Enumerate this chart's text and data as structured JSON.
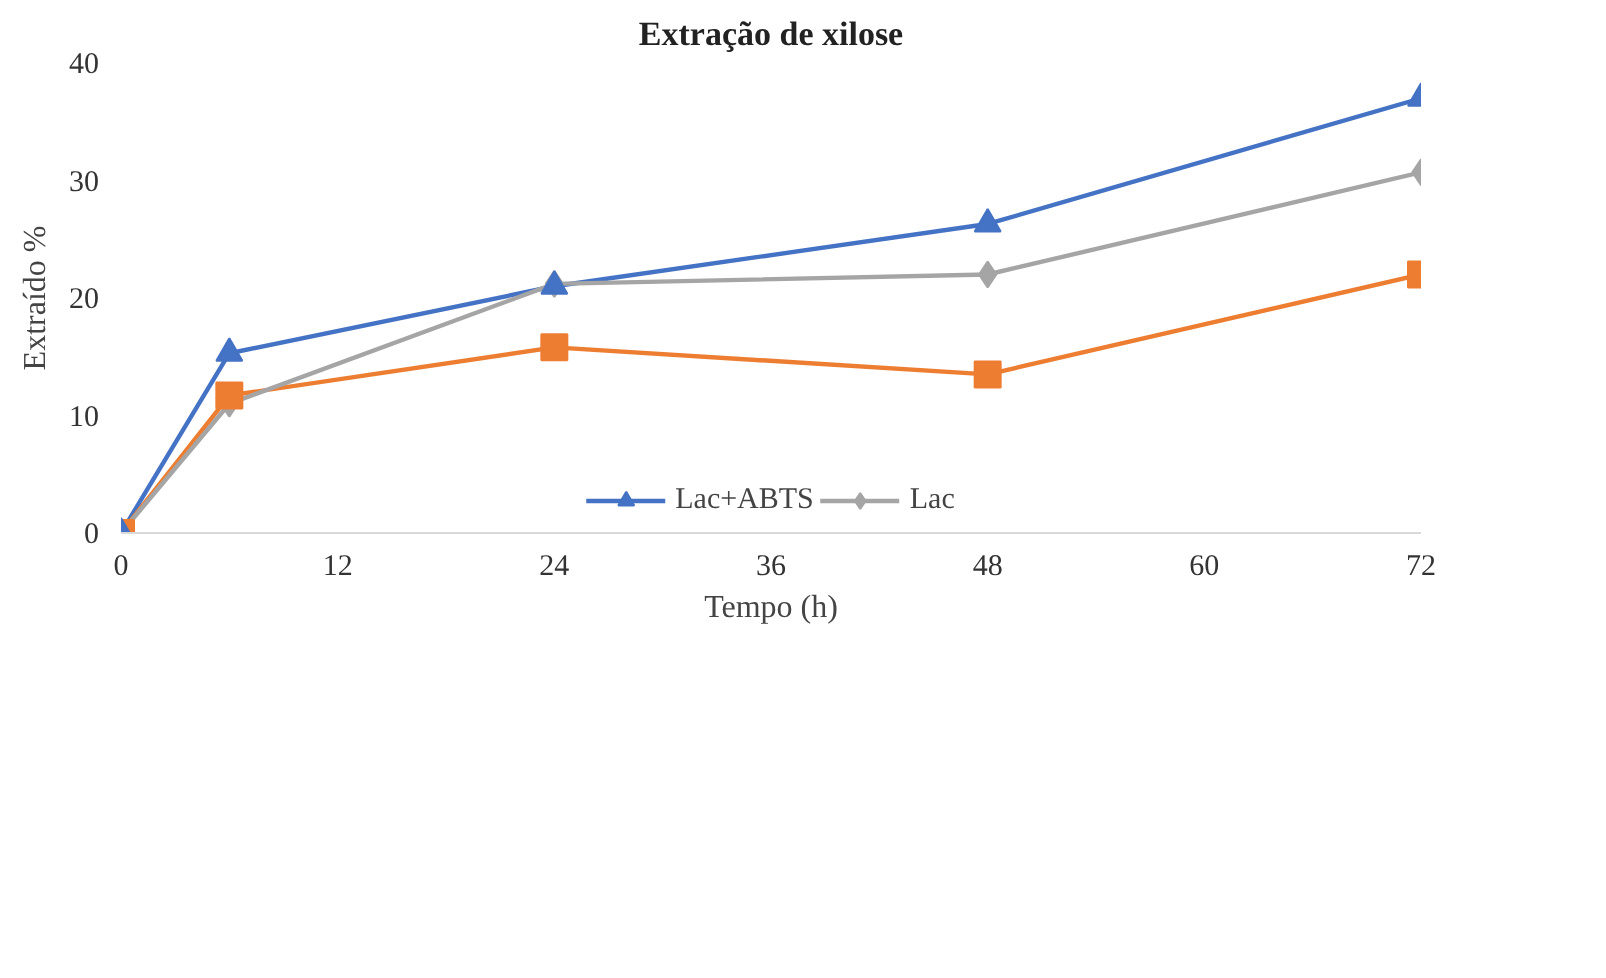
{
  "chart_data": {
    "type": "line",
    "title": "Extração de xilose",
    "xlabel": "Tempo (h)",
    "ylabel": "Extraído %",
    "x": [
      0,
      6,
      24,
      48,
      72
    ],
    "series": [
      {
        "name": "Lac+ABTS",
        "color": "#4472c4",
        "marker": "triangle",
        "values": [
          0,
          15.3,
          21,
          26.3,
          37
        ]
      },
      {
        "color": "#ed7d31",
        "marker": "square",
        "values": [
          0,
          11.7,
          15.8,
          13.5,
          22
        ]
      },
      {
        "name": "Lac",
        "color": "#a5a5a5",
        "marker": "diamond",
        "values": [
          0,
          11,
          21.2,
          22,
          30.7
        ]
      }
    ],
    "xlim": [
      0,
      72
    ],
    "xticks": [
      0,
      12,
      24,
      36,
      48,
      60,
      72
    ],
    "ylim": [
      0,
      40
    ],
    "yticks": [
      0,
      10,
      20,
      30,
      40
    ],
    "grid": false,
    "legend": "bottom",
    "line_style": "solid"
  }
}
